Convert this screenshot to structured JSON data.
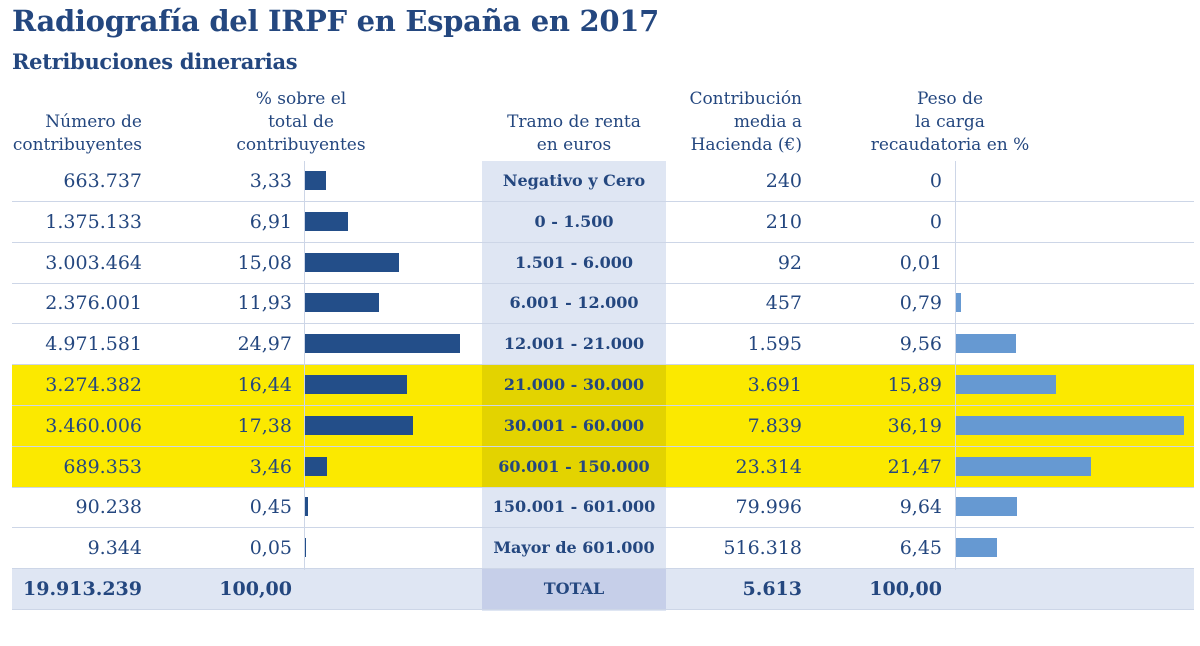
{
  "title": "Radiografía del IRPF en España en 2017",
  "subtitle": "Retribuciones dinerarias",
  "headers": {
    "count": [
      "Número de",
      "contribuyentes"
    ],
    "pct": [
      "% sobre el",
      "total de",
      "contribuyentes"
    ],
    "bracket": [
      "Tramo de renta",
      "en euros"
    ],
    "contribution": [
      "Contribución",
      "media a",
      "Hacienda (€)"
    ],
    "weight": [
      "Peso de",
      "la carga",
      "recaudatoria en %"
    ]
  },
  "colors": {
    "text": "#24477f",
    "bar_left": "#234e89",
    "bar_right": "#6699d2",
    "highlight": "#fbe900",
    "column_band": "#dfe6f3"
  },
  "chart_data": {
    "type": "table",
    "highlighted_rows": [
      5,
      6,
      7
    ],
    "rows": [
      {
        "contribuyentes": "663.737",
        "pct": "3,33",
        "tramo": "Negativo y Cero",
        "contribucion": "240",
        "peso": "0"
      },
      {
        "contribuyentes": "1.375.133",
        "pct": "6,91",
        "tramo": "0 - 1.500",
        "contribucion": "210",
        "peso": "0"
      },
      {
        "contribuyentes": "3.003.464",
        "pct": "15,08",
        "tramo": "1.501 - 6.000",
        "contribucion": "92",
        "peso": "0,01"
      },
      {
        "contribuyentes": "2.376.001",
        "pct": "11,93",
        "tramo": "6.001 - 12.000",
        "contribucion": "457",
        "peso": "0,79"
      },
      {
        "contribuyentes": "4.971.581",
        "pct": "24,97",
        "tramo": "12.001 - 21.000",
        "contribucion": "1.595",
        "peso": "9,56"
      },
      {
        "contribuyentes": "3.274.382",
        "pct": "16,44",
        "tramo": "21.000 - 30.000",
        "contribucion": "3.691",
        "peso": "15,89"
      },
      {
        "contribuyentes": "3.460.006",
        "pct": "17,38",
        "tramo": "30.001 - 60.000",
        "contribucion": "7.839",
        "peso": "36,19"
      },
      {
        "contribuyentes": "689.353",
        "pct": "3,46",
        "tramo": "60.001 - 150.000",
        "contribucion": "23.314",
        "peso": "21,47"
      },
      {
        "contribuyentes": "90.238",
        "pct": "0,45",
        "tramo": "150.001 - 601.000",
        "contribucion": "79.996",
        "peso": "9,64"
      },
      {
        "contribuyentes": "9.344",
        "pct": "0,05",
        "tramo": "Mayor de 601.000",
        "contribucion": "516.318",
        "peso": "6,45"
      }
    ],
    "total": {
      "contribuyentes": "19.913.239",
      "pct": "100,00",
      "tramo": "TOTAL",
      "contribucion": "5.613",
      "peso": "100,00"
    }
  }
}
